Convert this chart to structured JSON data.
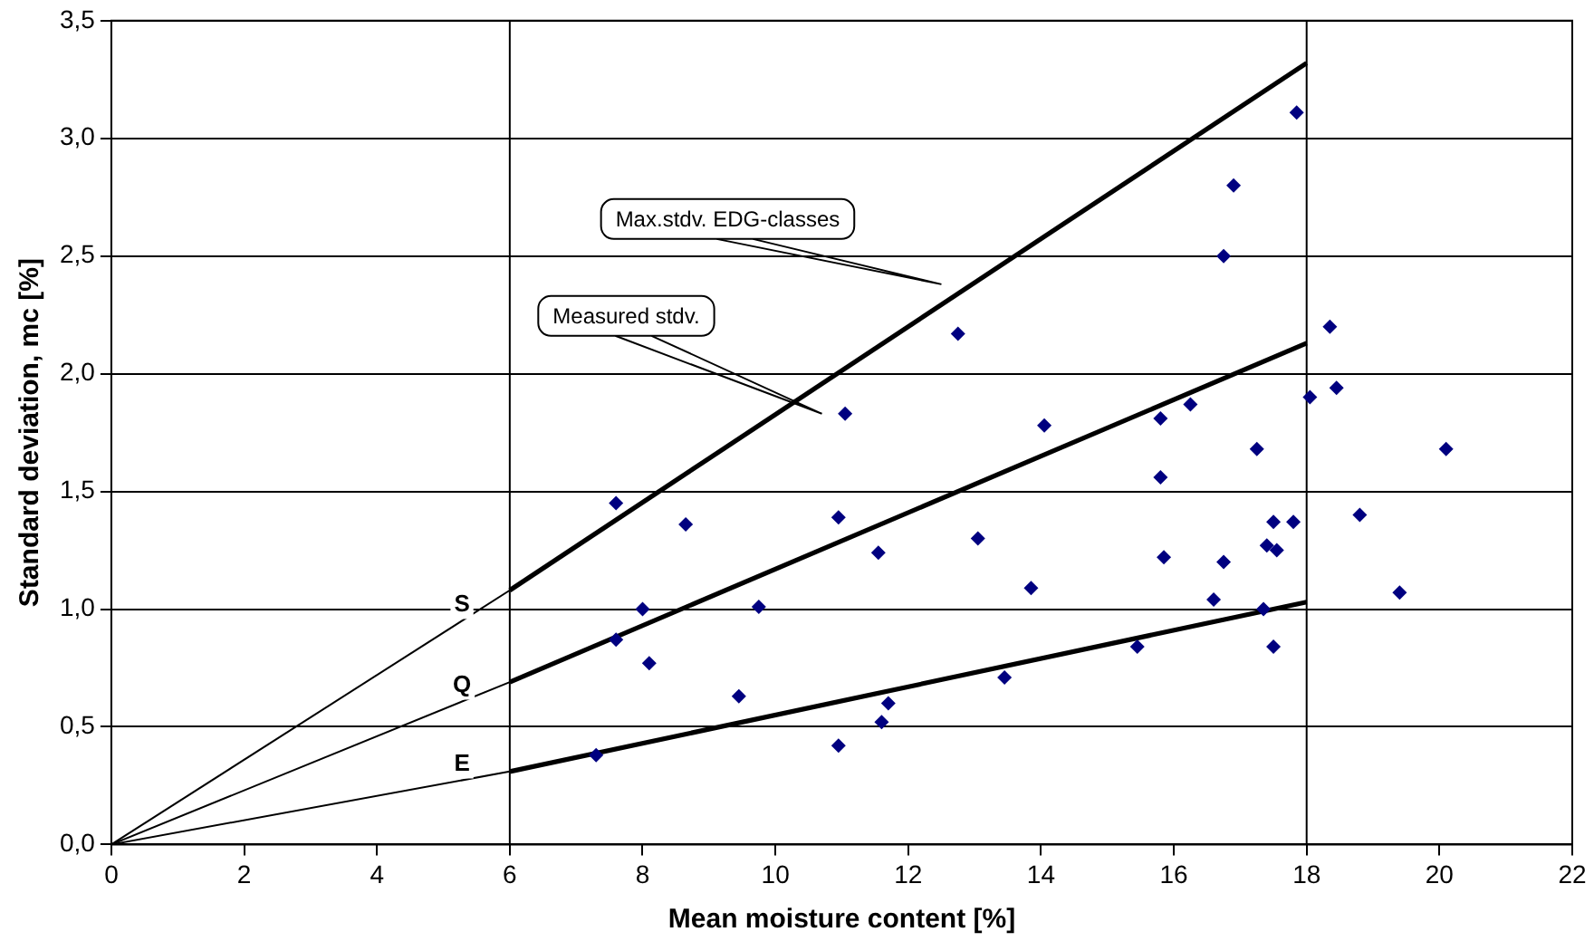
{
  "chart_data": {
    "type": "scatter",
    "xlabel": "Mean moisture content [%]",
    "ylabel": "Standard deviation, mc [%]",
    "xlim": [
      0,
      22
    ],
    "xticks": [
      0,
      2,
      4,
      6,
      8,
      10,
      12,
      14,
      16,
      18,
      20,
      22
    ],
    "ylim": [
      0,
      3.5
    ],
    "yticks": [
      {
        "value": 0,
        "label": "0,0"
      },
      {
        "value": 0.5,
        "label": "0,5"
      },
      {
        "value": 1,
        "label": "1,0"
      },
      {
        "value": 1.5,
        "label": "1,5"
      },
      {
        "value": 2,
        "label": "2,0"
      },
      {
        "value": 2.5,
        "label": "2,5"
      },
      {
        "value": 3,
        "label": "3,0"
      },
      {
        "value": 3.5,
        "label": "3,5"
      }
    ],
    "grid": "y",
    "legend": false,
    "marker": "diamond",
    "ref_lines": [
      {
        "axis": "x",
        "value": 6,
        "label": null
      },
      {
        "axis": "x",
        "value": 18,
        "label": null
      }
    ],
    "annotations": [
      "Max.stdv. EDG-classes",
      "Measured stdv."
    ],
    "series": [
      {
        "type": "scatter",
        "color": "#000080",
        "x": [
          7.3,
          7.6,
          7.6,
          8.0,
          8.1,
          8.65,
          9.45,
          9.75,
          10.95,
          10.95,
          11.05,
          11.55,
          11.6,
          11.7,
          12.75,
          13.05,
          13.45,
          13.85,
          14.05,
          15.45,
          15.8,
          15.8,
          15.85,
          16.25,
          16.6,
          16.75,
          16.75,
          16.9,
          17.25,
          17.35,
          17.4,
          17.5,
          17.5,
          17.55,
          17.8,
          17.85,
          18.05,
          18.35,
          18.45,
          18.8,
          19.4,
          20.1
        ],
        "values": [
          0.38,
          1.45,
          0.87,
          1.0,
          0.77,
          1.36,
          0.63,
          1.01,
          0.42,
          1.39,
          1.83,
          1.24,
          0.52,
          0.6,
          2.17,
          1.3,
          0.71,
          1.09,
          1.78,
          0.84,
          1.81,
          1.56,
          1.22,
          1.87,
          1.04,
          2.5,
          1.2,
          2.8,
          1.68,
          1.0,
          1.27,
          1.37,
          0.84,
          1.25,
          1.37,
          3.11,
          1.9,
          2.2,
          1.94,
          1.4,
          1.07,
          1.68
        ]
      },
      {
        "type": "line",
        "name": "S",
        "color": "#000000",
        "x": [
          0,
          6,
          18
        ],
        "values": [
          0,
          1.08,
          3.32
        ],
        "marker": "none"
      },
      {
        "type": "line",
        "name": "Q",
        "color": "#000000",
        "x": [
          0,
          6,
          18
        ],
        "values": [
          0,
          0.69,
          2.13
        ],
        "marker": "none"
      },
      {
        "type": "line",
        "name": "E",
        "color": "#000000",
        "x": [
          0,
          6,
          18
        ],
        "values": [
          0,
          0.31,
          1.03
        ],
        "marker": "none"
      }
    ]
  }
}
